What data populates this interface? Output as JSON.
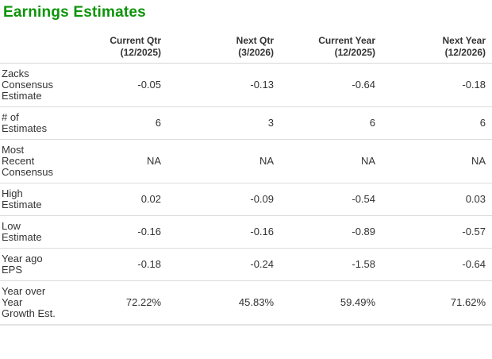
{
  "title": "Earnings Estimates",
  "colors": {
    "title_green": "#0c9409",
    "text": "#333333",
    "divider": "#dcdcdc"
  },
  "table": {
    "columns": [
      "Current Qtr\n(12/2025)",
      "Next Qtr\n(3/2026)",
      "Current Year\n(12/2025)",
      "Next Year\n(12/2026)"
    ],
    "rows": [
      {
        "label": "Zacks Consensus Estimate",
        "values": [
          "-0.05",
          "-0.13",
          "-0.64",
          "-0.18"
        ]
      },
      {
        "label": "# of Estimates",
        "values": [
          "6",
          "3",
          "6",
          "6"
        ]
      },
      {
        "label": "Most Recent Consensus",
        "values": [
          "NA",
          "NA",
          "NA",
          "NA"
        ]
      },
      {
        "label": "High Estimate",
        "values": [
          "0.02",
          "-0.09",
          "-0.54",
          "0.03"
        ]
      },
      {
        "label": "Low Estimate",
        "values": [
          "-0.16",
          "-0.16",
          "-0.89",
          "-0.57"
        ]
      },
      {
        "label": "Year ago EPS",
        "values": [
          "-0.18",
          "-0.24",
          "-1.58",
          "-0.64"
        ]
      },
      {
        "label": "Year over Year Growth Est.",
        "values": [
          "72.22%",
          "45.83%",
          "59.49%",
          "71.62%"
        ]
      }
    ]
  }
}
